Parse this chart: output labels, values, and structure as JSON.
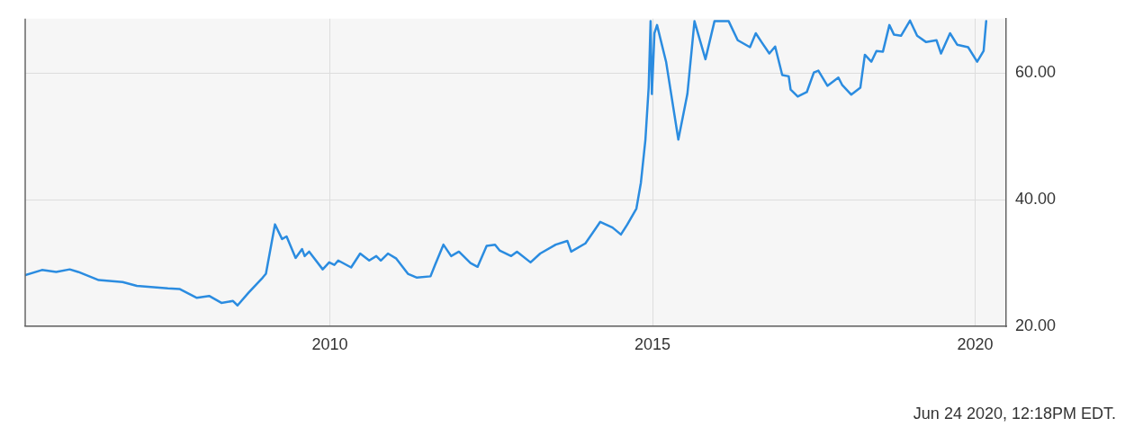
{
  "chart_data": {
    "type": "line",
    "x": [
      2005.28,
      2005.54,
      2005.76,
      2005.97,
      2006.1,
      2006.42,
      2006.79,
      2007.01,
      2007.49,
      2007.67,
      2007.94,
      2008.13,
      2008.32,
      2008.5,
      2008.57,
      2008.74,
      2008.96,
      2009.01,
      2009.15,
      2009.26,
      2009.33,
      2009.47,
      2009.57,
      2009.61,
      2009.68,
      2009.89,
      2009.99,
      2010.07,
      2010.13,
      2010.33,
      2010.47,
      2010.61,
      2010.72,
      2010.79,
      2010.9,
      2011.03,
      2011.21,
      2011.35,
      2011.56,
      2011.63,
      2011.76,
      2011.88,
      2012.0,
      2012.18,
      2012.29,
      2012.43,
      2012.56,
      2012.63,
      2012.81,
      2012.9,
      2013.11,
      2013.26,
      2013.5,
      2013.68,
      2013.74,
      2013.96,
      2014.19,
      2014.38,
      2014.51,
      2014.61,
      2014.75,
      2014.82,
      2014.89,
      2014.94,
      2014.97,
      2014.99,
      2015.03,
      2015.07,
      2015.21,
      2015.4,
      2015.54,
      2015.65,
      2015.82,
      2015.96,
      2016.18,
      2016.32,
      2016.51,
      2016.6,
      2016.69,
      2016.81,
      2016.9,
      2017.01,
      2017.11,
      2017.14,
      2017.25,
      2017.39,
      2017.5,
      2017.57,
      2017.71,
      2017.88,
      2017.94,
      2018.08,
      2018.22,
      2018.29,
      2018.39,
      2018.47,
      2018.57,
      2018.67,
      2018.74,
      2018.85,
      2018.99,
      2019.1,
      2019.24,
      2019.4,
      2019.47,
      2019.61,
      2019.72,
      2019.89,
      2020.03,
      2020.13,
      2020.17
    ],
    "series": [
      {
        "color": "#2b8ce0",
        "values": [
          28.1,
          28.9,
          28.6,
          29.0,
          28.6,
          27.3,
          27.0,
          26.4,
          26.0,
          25.9,
          24.5,
          24.8,
          23.7,
          24.0,
          23.3,
          25.3,
          27.7,
          28.3,
          36.1,
          33.8,
          34.2,
          30.8,
          32.2,
          31.1,
          31.8,
          29.0,
          30.1,
          29.7,
          30.4,
          29.3,
          31.5,
          30.4,
          31.1,
          30.4,
          31.5,
          30.7,
          28.3,
          27.7,
          27.9,
          29.7,
          32.9,
          31.1,
          31.8,
          30.0,
          29.4,
          32.7,
          32.9,
          32.0,
          31.1,
          31.8,
          30.1,
          31.5,
          32.9,
          33.5,
          31.8,
          33.1,
          36.5,
          35.6,
          34.5,
          36.1,
          38.6,
          42.7,
          49.5,
          57.7,
          68.2,
          56.7,
          66.3,
          67.6,
          61.8,
          49.5,
          56.7,
          68.2,
          62.2,
          68.2,
          68.2,
          65.2,
          64.1,
          66.3,
          64.9,
          63.1,
          64.2,
          59.7,
          59.5,
          57.4,
          56.3,
          57.0,
          60.1,
          60.4,
          58.0,
          59.3,
          58.1,
          56.6,
          57.7,
          62.9,
          61.8,
          63.5,
          63.4,
          67.6,
          66.1,
          65.9,
          68.3,
          65.9,
          64.9,
          65.2,
          63.1,
          66.3,
          64.5,
          64.1,
          61.8,
          63.5,
          68.2
        ]
      }
    ],
    "xlim": [
      2005.28,
      2020.48
    ],
    "xticks": [
      2010,
      2015,
      2020
    ],
    "ylim": [
      20,
      68.6
    ],
    "yticks": [
      {
        "value": 20,
        "label": "20.00"
      },
      {
        "value": 40,
        "label": "40.00"
      },
      {
        "value": 60,
        "label": "60.00"
      }
    ],
    "grid": true,
    "legend": false,
    "marker": "none",
    "line_style": "solid",
    "annotations": [
      "Jun 24 2020, 12:18PM EDT."
    ]
  }
}
